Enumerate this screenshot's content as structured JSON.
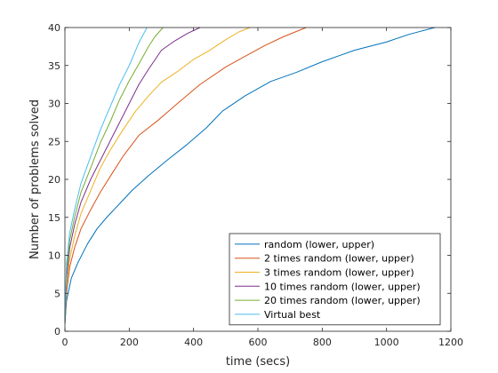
{
  "chart_data": {
    "type": "line",
    "title": "",
    "xlabel": "time (secs)",
    "ylabel": "Number of problems solved",
    "xlim": [
      0,
      1200
    ],
    "ylim": [
      0,
      40
    ],
    "xticks": [
      0,
      200,
      400,
      600,
      800,
      1000,
      1200
    ],
    "yticks": [
      0,
      5,
      10,
      15,
      20,
      25,
      30,
      35,
      40
    ],
    "grid": false,
    "legend_position": "bottom-right",
    "series": [
      {
        "name": "random (lower, upper)",
        "color": "#0072BD",
        "points": [
          [
            0,
            1
          ],
          [
            5,
            4
          ],
          [
            20,
            7
          ],
          [
            40,
            9
          ],
          [
            70,
            11.5
          ],
          [
            100,
            13.5
          ],
          [
            130,
            15
          ],
          [
            170,
            16.8
          ],
          [
            210,
            18.6
          ],
          [
            260,
            20.5
          ],
          [
            320,
            22.6
          ],
          [
            380,
            24.6
          ],
          [
            440,
            26.8
          ],
          [
            490,
            29
          ],
          [
            560,
            31
          ],
          [
            640,
            32.9
          ],
          [
            720,
            34.1
          ],
          [
            800,
            35.5
          ],
          [
            900,
            37
          ],
          [
            1000,
            38.1
          ],
          [
            1070,
            39.1
          ],
          [
            1150,
            40
          ]
        ]
      },
      {
        "name": "2 times random (lower, upper)",
        "color": "#D95319",
        "points": [
          [
            0,
            1
          ],
          [
            5,
            5
          ],
          [
            15,
            8.5
          ],
          [
            30,
            11
          ],
          [
            50,
            13.5
          ],
          [
            80,
            16
          ],
          [
            110,
            18.3
          ],
          [
            150,
            21
          ],
          [
            180,
            23
          ],
          [
            230,
            25.8
          ],
          [
            290,
            27.8
          ],
          [
            350,
            30
          ],
          [
            420,
            32.5
          ],
          [
            500,
            34.8
          ],
          [
            560,
            36.2
          ],
          [
            620,
            37.6
          ],
          [
            680,
            38.8
          ],
          [
            750,
            40
          ]
        ]
      },
      {
        "name": "3 times random (lower, upper)",
        "color": "#EDB120",
        "points": [
          [
            0,
            1
          ],
          [
            5,
            6
          ],
          [
            15,
            9.5
          ],
          [
            30,
            12.5
          ],
          [
            50,
            15.5
          ],
          [
            80,
            18.5
          ],
          [
            110,
            21.5
          ],
          [
            140,
            23.8
          ],
          [
            180,
            26.5
          ],
          [
            220,
            29
          ],
          [
            260,
            31
          ],
          [
            300,
            32.8
          ],
          [
            350,
            34.2
          ],
          [
            400,
            35.8
          ],
          [
            450,
            37
          ],
          [
            500,
            38.4
          ],
          [
            540,
            39.4
          ],
          [
            575,
            40
          ]
        ]
      },
      {
        "name": "10 times random (lower, upper)",
        "color": "#7E2F8E",
        "points": [
          [
            0,
            1
          ],
          [
            5,
            7
          ],
          [
            15,
            11
          ],
          [
            30,
            14
          ],
          [
            50,
            17
          ],
          [
            80,
            20
          ],
          [
            110,
            22.5
          ],
          [
            140,
            25
          ],
          [
            170,
            27.5
          ],
          [
            200,
            30
          ],
          [
            230,
            32.5
          ],
          [
            260,
            34.5
          ],
          [
            300,
            37
          ],
          [
            340,
            38.2
          ],
          [
            380,
            39.2
          ],
          [
            420,
            40
          ]
        ]
      },
      {
        "name": "20 times random (lower, upper)",
        "color": "#77AC30",
        "points": [
          [
            0,
            1
          ],
          [
            5,
            8
          ],
          [
            15,
            12
          ],
          [
            30,
            15
          ],
          [
            50,
            18.3
          ],
          [
            80,
            21.5
          ],
          [
            110,
            24.8
          ],
          [
            140,
            27.5
          ],
          [
            170,
            30.5
          ],
          [
            200,
            33
          ],
          [
            230,
            35.2
          ],
          [
            260,
            37.5
          ],
          [
            280,
            38.8
          ],
          [
            305,
            40
          ]
        ]
      },
      {
        "name": "Virtual best",
        "color": "#4DBEEE",
        "points": [
          [
            0,
            1
          ],
          [
            5,
            9
          ],
          [
            15,
            13
          ],
          [
            30,
            16
          ],
          [
            50,
            19.5
          ],
          [
            80,
            23
          ],
          [
            110,
            26.5
          ],
          [
            140,
            29.5
          ],
          [
            170,
            32.5
          ],
          [
            200,
            35
          ],
          [
            230,
            38
          ],
          [
            255,
            40
          ]
        ]
      }
    ]
  }
}
